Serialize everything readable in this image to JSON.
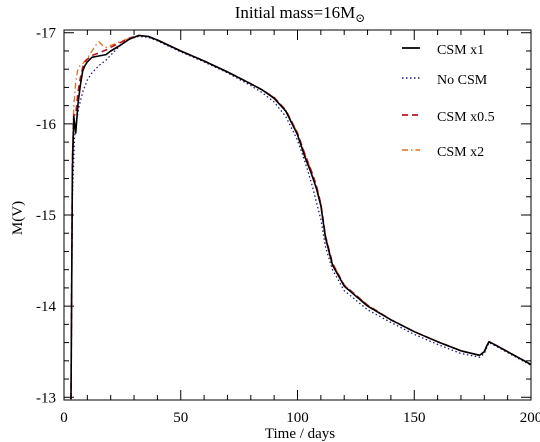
{
  "chart_data": {
    "type": "line",
    "title_main": "Initial mass=16M",
    "title_symbol": "⊙",
    "xlabel": "Time / days",
    "ylabel": "M(V)",
    "xlim": [
      0,
      200
    ],
    "ylim": [
      -12.97,
      -17.03
    ],
    "y_inverted": true,
    "x_ticks": [
      "0",
      "50",
      "100",
      "150",
      "200"
    ],
    "x_tick_values": [
      0,
      50,
      100,
      150,
      200
    ],
    "y_ticks": [
      "-17",
      "-16",
      "-15",
      "-14",
      "-13"
    ],
    "y_tick_values": [
      -17,
      -16,
      -15,
      -14,
      -13
    ],
    "legend_position": "top-right",
    "series": [
      {
        "name": "CSM x1",
        "color": "#000000",
        "dash": "solid",
        "x": [
          3,
          3.6,
          4.2,
          5,
          6,
          7,
          8,
          9,
          10,
          12,
          14,
          16,
          18,
          20,
          24,
          28,
          32,
          36,
          40,
          50,
          60,
          70,
          80,
          85,
          90,
          95,
          100,
          103,
          106,
          108,
          110,
          112,
          115,
          120,
          130,
          140,
          150,
          160,
          170,
          178,
          180,
          181,
          182,
          185,
          190,
          195,
          200
        ],
        "y": [
          -12.98,
          -15.5,
          -16.08,
          -15.9,
          -16.22,
          -16.42,
          -16.58,
          -16.64,
          -16.68,
          -16.73,
          -16.74,
          -16.75,
          -16.76,
          -16.8,
          -16.86,
          -16.93,
          -16.97,
          -16.96,
          -16.92,
          -16.8,
          -16.69,
          -16.57,
          -16.44,
          -16.37,
          -16.28,
          -16.14,
          -15.88,
          -15.65,
          -15.45,
          -15.3,
          -15.1,
          -14.75,
          -14.45,
          -14.22,
          -14.0,
          -13.85,
          -13.72,
          -13.61,
          -13.51,
          -13.46,
          -13.5,
          -13.56,
          -13.61,
          -13.57,
          -13.5,
          -13.43,
          -13.36
        ]
      },
      {
        "name": "No CSM",
        "color": "#1a1a80",
        "dash": "dotted",
        "x": [
          3,
          3.6,
          4.5,
          5.5,
          6.5,
          8,
          10,
          12,
          15,
          18,
          21,
          24,
          28,
          32,
          36,
          40,
          50,
          60,
          70,
          80,
          85,
          90,
          95,
          100,
          103,
          106,
          108,
          110,
          112,
          115,
          120,
          130,
          140,
          150,
          160,
          170,
          178,
          180,
          181,
          182,
          185,
          190,
          195,
          200
        ],
        "y": [
          -12.98,
          -15.2,
          -15.85,
          -16.05,
          -16.2,
          -16.35,
          -16.48,
          -16.56,
          -16.64,
          -16.7,
          -16.78,
          -16.86,
          -16.93,
          -16.96,
          -16.95,
          -16.91,
          -16.79,
          -16.68,
          -16.56,
          -16.42,
          -16.34,
          -16.24,
          -16.08,
          -15.82,
          -15.6,
          -15.35,
          -15.15,
          -14.95,
          -14.65,
          -14.4,
          -14.17,
          -13.96,
          -13.82,
          -13.69,
          -13.58,
          -13.48,
          -13.44,
          -13.48,
          -13.54,
          -13.6,
          -13.56,
          -13.49,
          -13.42,
          -13.35
        ]
      },
      {
        "name": "CSM x0.5",
        "color": "#c0141e",
        "dash": "dashed",
        "x": [
          3,
          3.6,
          4.2,
          5,
          6,
          7,
          8,
          9,
          10,
          12,
          14,
          16,
          18,
          20,
          24,
          28,
          32,
          36,
          40,
          50,
          60,
          70,
          80,
          85,
          90,
          95,
          100,
          103,
          106,
          108,
          110,
          112,
          115,
          120,
          130,
          140,
          150,
          160,
          170,
          178,
          180,
          181,
          182,
          185,
          190,
          195,
          200
        ],
        "y": [
          -12.98,
          -15.6,
          -16.1,
          -16.1,
          -16.35,
          -16.5,
          -16.62,
          -16.68,
          -16.71,
          -16.75,
          -16.77,
          -16.79,
          -16.81,
          -16.84,
          -16.89,
          -16.94,
          -16.97,
          -16.96,
          -16.92,
          -16.8,
          -16.69,
          -16.57,
          -16.44,
          -16.37,
          -16.29,
          -16.15,
          -15.9,
          -15.68,
          -15.48,
          -15.33,
          -15.12,
          -14.77,
          -14.47,
          -14.23,
          -14.01,
          -13.85,
          -13.72,
          -13.61,
          -13.51,
          -13.46,
          -13.5,
          -13.56,
          -13.61,
          -13.57,
          -13.5,
          -13.43,
          -13.36
        ]
      },
      {
        "name": "CSM x2",
        "color": "#e07020",
        "dash": "dashdot",
        "x": [
          3,
          3.6,
          4.2,
          5,
          5.8,
          6.5,
          8,
          10,
          12,
          13.5,
          15,
          16.5,
          18,
          20,
          24,
          28,
          32,
          36,
          40,
          50,
          60,
          70,
          80,
          85,
          90,
          95,
          100,
          103,
          106,
          108,
          110,
          112,
          115,
          120,
          130,
          140,
          150,
          160,
          170,
          178,
          180,
          181,
          182,
          185,
          190,
          195,
          200
        ],
        "y": [
          -12.98,
          -15.7,
          -16.2,
          -16.45,
          -16.58,
          -16.63,
          -16.66,
          -16.72,
          -16.8,
          -16.86,
          -16.9,
          -16.86,
          -16.84,
          -16.86,
          -16.9,
          -16.94,
          -16.97,
          -16.96,
          -16.92,
          -16.8,
          -16.69,
          -16.57,
          -16.44,
          -16.37,
          -16.29,
          -16.15,
          -15.9,
          -15.68,
          -15.48,
          -15.33,
          -15.12,
          -14.77,
          -14.47,
          -14.23,
          -14.01,
          -13.85,
          -13.72,
          -13.61,
          -13.51,
          -13.46,
          -13.5,
          -13.56,
          -13.61,
          -13.57,
          -13.5,
          -13.43,
          -13.36
        ]
      }
    ]
  }
}
